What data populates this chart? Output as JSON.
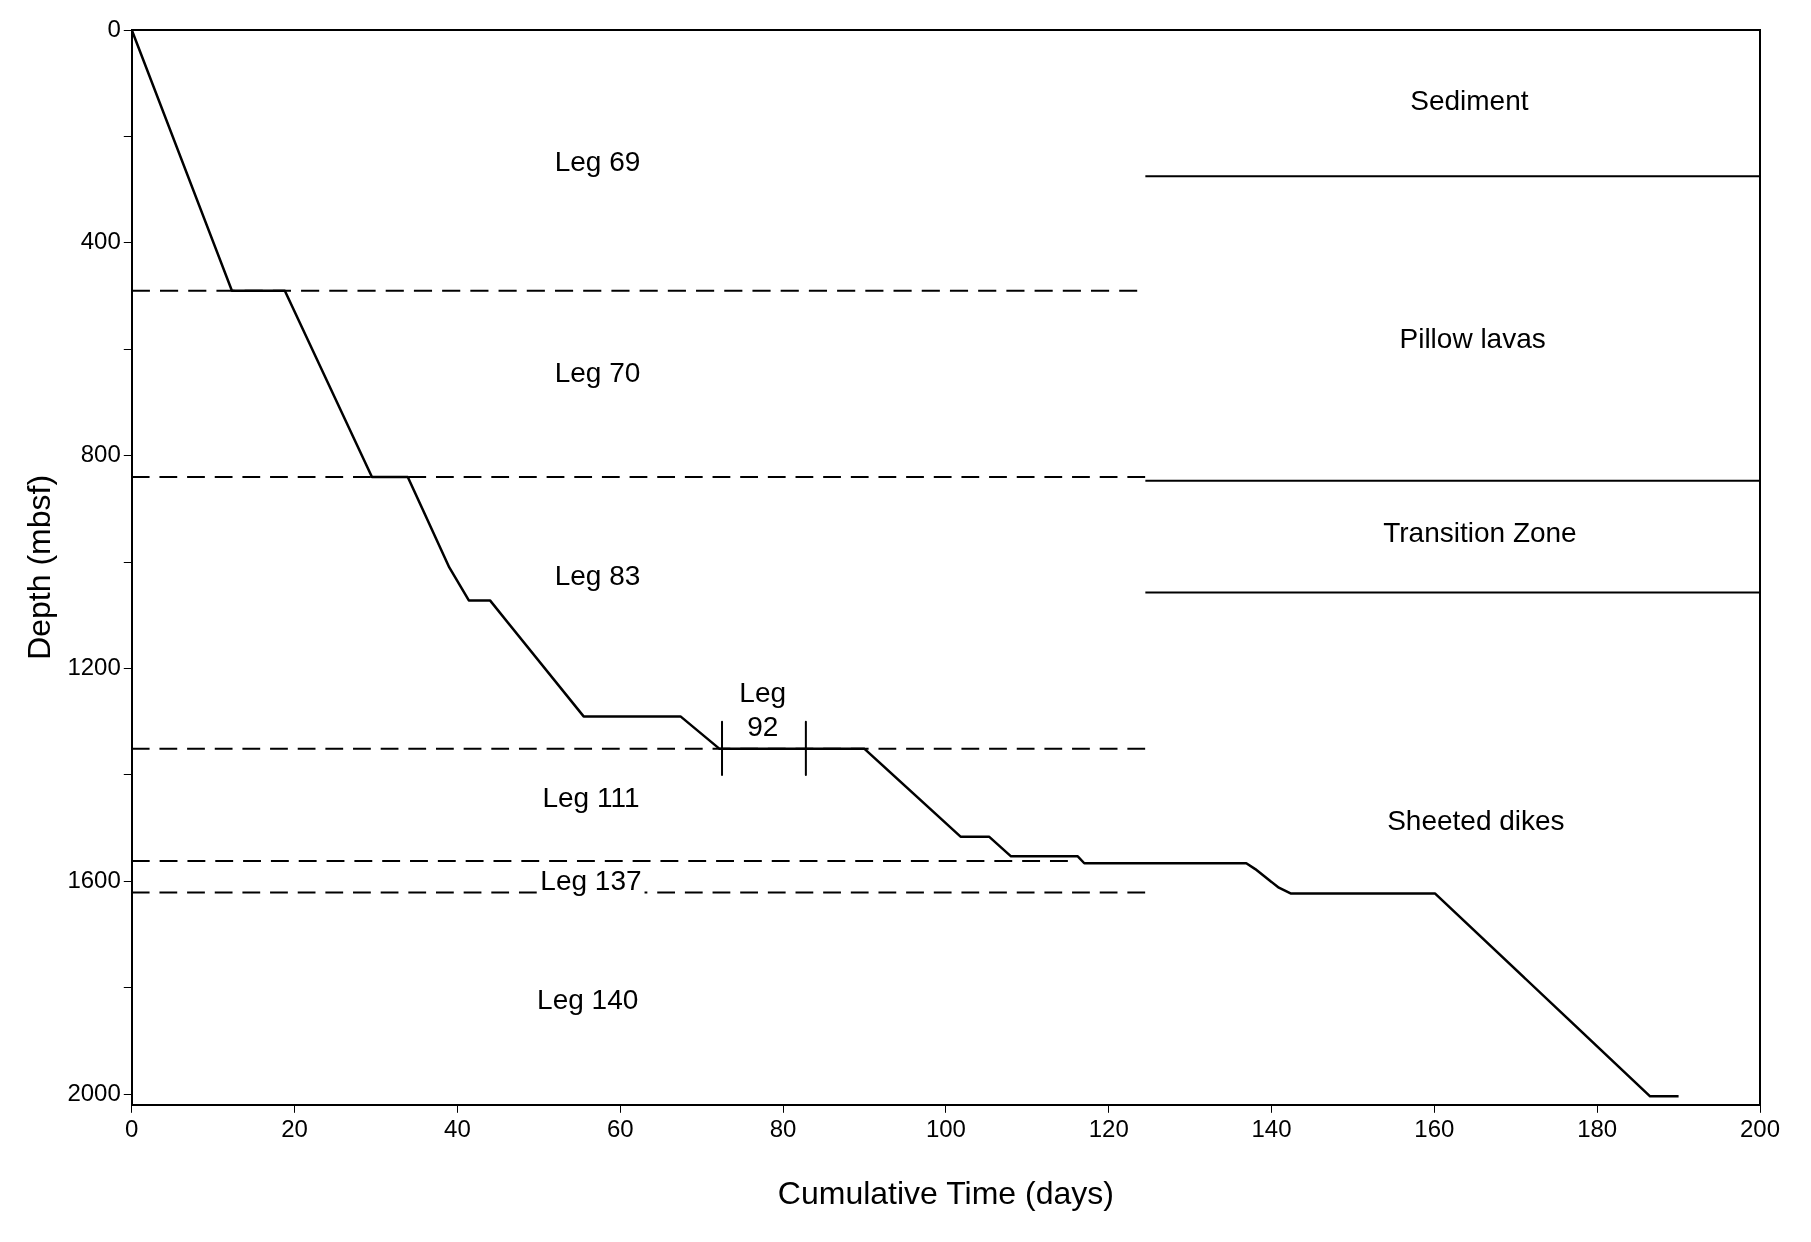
{
  "chart_data": {
    "type": "line",
    "xlabel": "Cumulative Time (days)",
    "ylabel": "Depth (mbsf)",
    "xlim": [
      0,
      200
    ],
    "xticks": [
      0,
      20,
      40,
      60,
      80,
      100,
      120,
      140,
      160,
      180,
      200
    ],
    "ylim": [
      2020,
      0
    ],
    "yticks": [
      0,
      {
        "value": 200,
        "label": null
      },
      400,
      {
        "value": 600,
        "label": null
      },
      800,
      {
        "value": 1000,
        "label": null
      },
      1200,
      {
        "value": 1400,
        "label": null
      },
      1600,
      {
        "value": 1800,
        "label": null
      },
      2000
    ],
    "grid": false,
    "legend": false,
    "marker": "none",
    "series": [
      {
        "color": "#000000",
        "line_style": "solid",
        "x": [
          0,
          12.3,
          18.8,
          29.5,
          33.9,
          39,
          41.4,
          44,
          55.5,
          67.4,
          72.2,
          90,
          101.8,
          105.3,
          108,
          116.2,
          117,
          136.9,
          138,
          140.9,
          142.4,
          160.1,
          186.5,
          190
        ],
        "values": [
          0,
          490,
          490,
          840,
          840,
          1010,
          1072,
          1072,
          1290,
          1290,
          1351,
          1351,
          1516,
          1516,
          1553,
          1553,
          1566,
          1566,
          1577,
          1612,
          1623,
          1623,
          2004,
          2004
        ]
      },
      {
        "color": "#000000",
        "line_style": "dashed",
        "x": [
          0,
          123.5
        ],
        "values": [
          490,
          490
        ]
      },
      {
        "color": "#000000",
        "line_style": "dashed",
        "x": [
          0,
          124.5
        ],
        "values": [
          840,
          840
        ]
      },
      {
        "color": "#000000",
        "line_style": "dashed",
        "x": [
          0,
          124.5
        ],
        "values": [
          1351,
          1351
        ]
      },
      {
        "color": "#000000",
        "line_style": "dashed",
        "x": [
          0,
          115
        ],
        "values": [
          1562,
          1562
        ]
      },
      {
        "color": "#000000",
        "line_style": "dashed",
        "x": [
          0,
          124.5
        ],
        "values": [
          1621,
          1621
        ]
      },
      {
        "color": "#000000",
        "line_style": "solid",
        "x": [
          124.5,
          200
        ],
        "values": [
          275,
          275
        ]
      },
      {
        "color": "#000000",
        "line_style": "solid",
        "x": [
          124.5,
          200
        ],
        "values": [
          847,
          847
        ]
      },
      {
        "color": "#000000",
        "line_style": "solid",
        "x": [
          124.5,
          200
        ],
        "values": [
          1057,
          1057
        ]
      },
      {
        "color": "#000000",
        "line_style": "solid",
        "x": [
          72.5,
          72.5
        ],
        "values": [
          1300,
          1400
        ]
      },
      {
        "color": "#000000",
        "line_style": "solid",
        "x": [
          82.8,
          82.8
        ],
        "values": [
          1300,
          1400
        ]
      }
    ],
    "annotations": [
      "Leg 69",
      "Leg 70",
      "Leg 83",
      "Leg\n92",
      "Leg 111",
      "Leg 137",
      "Leg 140",
      "Sediment",
      "Pillow lavas",
      "Transition Zone",
      "Sheeted dikes"
    ]
  }
}
